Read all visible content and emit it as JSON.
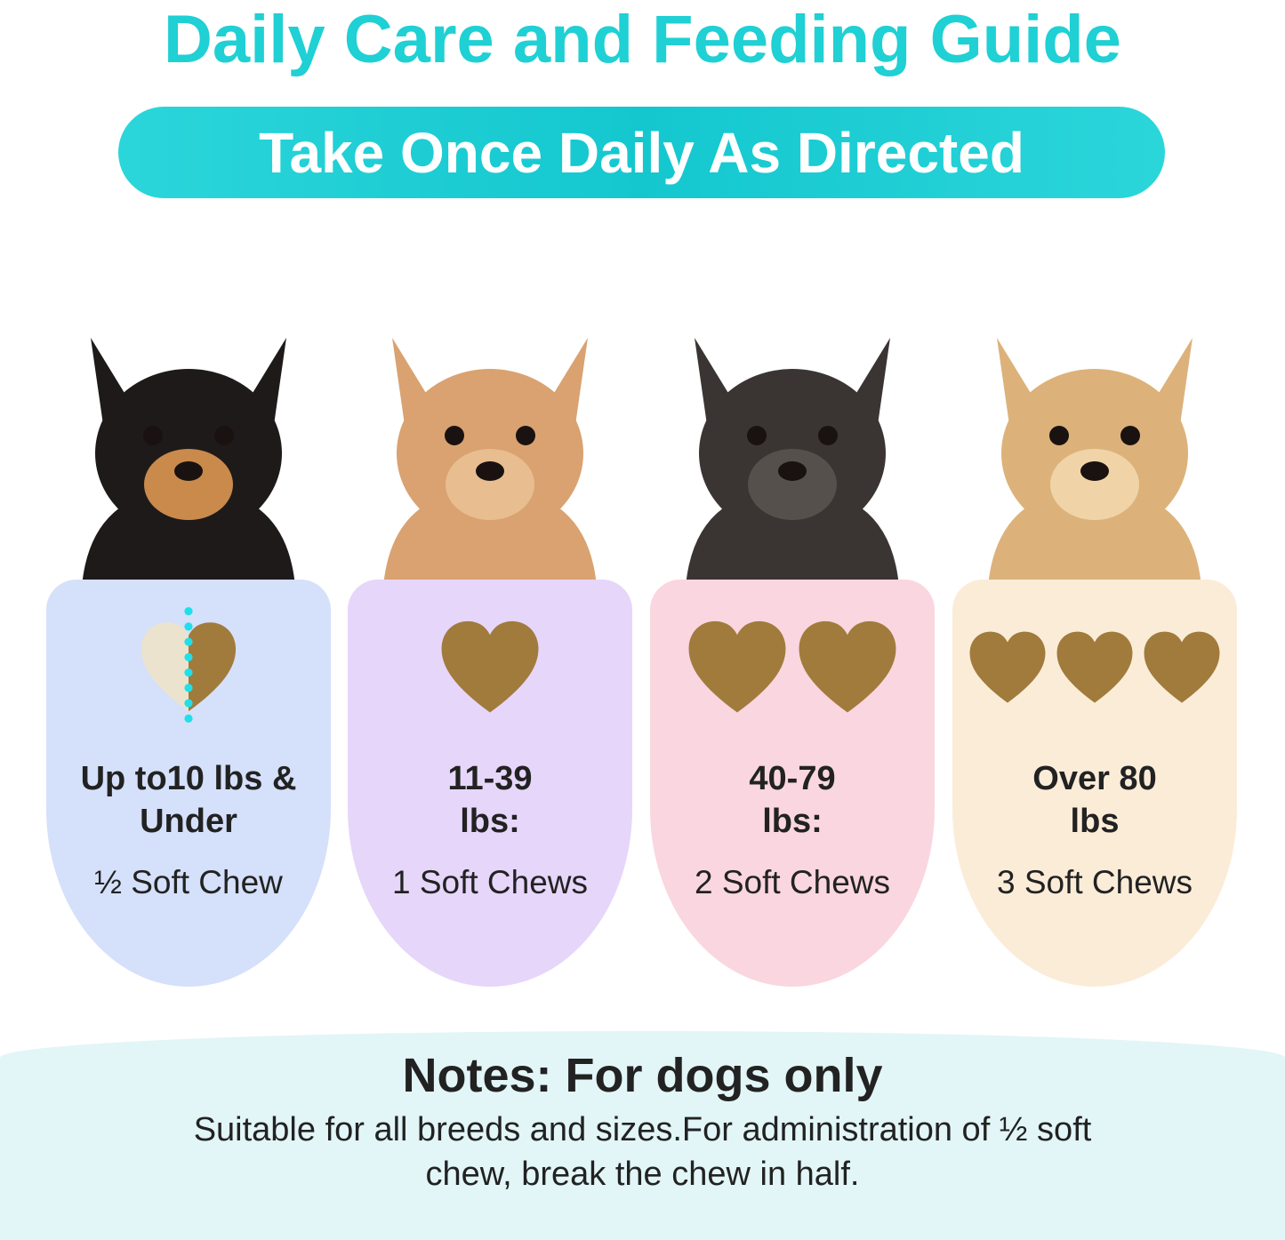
{
  "header": {
    "title": "Daily Care and Feeding Guide",
    "subtitle": "Take Once Daily As Directed"
  },
  "colors": {
    "accent": "#1fd0d4",
    "chew": "#a07b3c",
    "notes_bg": "#e2f5f7"
  },
  "cards": [
    {
      "dog": "chihuahua",
      "weight": "Up to10 lbs & Under",
      "dose": "½ Soft Chew",
      "chews": 0.5,
      "bg": "#d5e0fa",
      "fur": "#1e1a1a",
      "fur2": "#c98a4c"
    },
    {
      "dog": "toy-poodle",
      "weight": "11-39 lbs:",
      "dose": "1 Soft Chews",
      "chews": 1,
      "bg": "#e6d6fa",
      "fur": "#d9a270",
      "fur2": "#e8bd90"
    },
    {
      "dog": "french-bulldog",
      "weight": "40-79 lbs:",
      "dose": "2 Soft Chews",
      "chews": 2,
      "bg": "#fad6e0",
      "fur": "#3a3533",
      "fur2": "#55504c"
    },
    {
      "dog": "golden-retriever",
      "weight": "Over 80 lbs",
      "dose": "3 Soft Chews",
      "chews": 3,
      "bg": "#fbecd8",
      "fur": "#dcb27a",
      "fur2": "#f0d4a8"
    }
  ],
  "notes": {
    "title": "Notes: For dogs only",
    "text": "Suitable for all breeds and sizes.For administration of ½ soft chew, break the chew in half."
  }
}
